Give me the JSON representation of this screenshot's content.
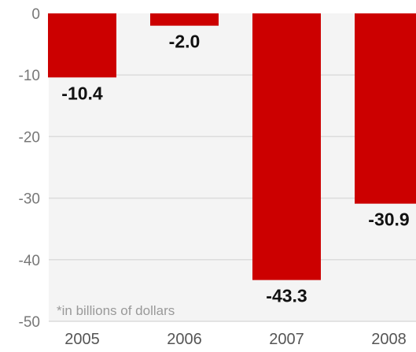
{
  "chart_data": {
    "type": "bar",
    "categories": [
      "2005",
      "2006",
      "2007",
      "2008"
    ],
    "values": [
      -10.4,
      -2.0,
      -43.3,
      -30.9
    ],
    "value_labels": [
      "-10.4",
      "-2.0",
      "-43.3",
      "-30.9"
    ],
    "ylim": [
      -50,
      0
    ],
    "yticks": [
      0,
      -10,
      -20,
      -30,
      -40,
      -50
    ],
    "ytick_labels": [
      "0",
      "-10",
      "-20",
      "-30",
      "-40",
      "-50"
    ],
    "annotation": "*in billions of dollars",
    "grid": true,
    "colors": {
      "bar": "#cc0000",
      "plot_background": "#f4f4f4",
      "gridline": "#dcdcdc"
    }
  }
}
